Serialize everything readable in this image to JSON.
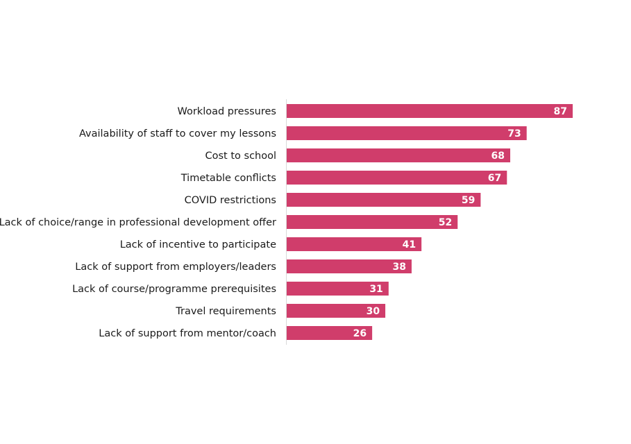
{
  "chart_data": {
    "type": "bar",
    "orientation": "horizontal",
    "categories": [
      "Workload pressures",
      "Availability of staff to cover my lessons",
      "Cost to school",
      "Timetable conflicts",
      "COVID restrictions",
      "Lack of choice/range in professional development offer",
      "Lack of incentive to participate",
      "Lack of support from employers/leaders",
      "Lack of course/programme prerequisites",
      "Travel requirements",
      "Lack of support from mentor/coach"
    ],
    "values": [
      87,
      73,
      68,
      67,
      59,
      52,
      41,
      38,
      31,
      30,
      26
    ],
    "data_labels": true,
    "grid": false,
    "legend": "none",
    "bar_color": "#d03d6b"
  }
}
